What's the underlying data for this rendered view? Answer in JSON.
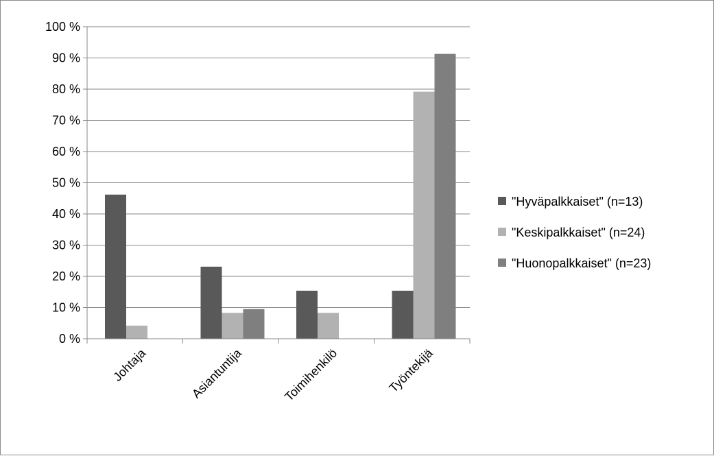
{
  "chart_data": {
    "type": "bar",
    "categories": [
      "Johtaja",
      "Asiantuntija",
      "Toimihenkilö",
      "Työntekijä"
    ],
    "series": [
      {
        "name": "\"Hyväpalkkaiset\" (n=13)",
        "values": [
          46.2,
          23.1,
          15.4,
          15.4
        ],
        "color": "#595959"
      },
      {
        "name": "\"Keskipalkkaiset\" (n=24)",
        "values": [
          4.2,
          8.3,
          8.3,
          79.2
        ],
        "color": "#b2b2b2"
      },
      {
        "name": "\"Huonopalkkaiset\" (n=23)",
        "values": [
          0,
          9.5,
          0,
          91.3
        ],
        "color": "#7f7f7f"
      }
    ],
    "ylim": [
      0,
      100
    ],
    "yticks": [
      "0 %",
      "10 %",
      "20 %",
      "30 %",
      "40 %",
      "50 %",
      "60 %",
      "70 %",
      "80 %",
      "90 %",
      "100 %"
    ],
    "grid": true,
    "legend_position": "right",
    "title": "",
    "xlabel": "",
    "ylabel": ""
  }
}
